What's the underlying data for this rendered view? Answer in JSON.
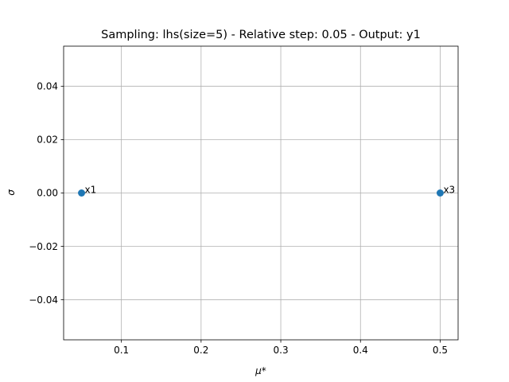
{
  "chart_data": {
    "type": "scatter",
    "title": "Sampling: lhs(size=5) - Relative step: 0.05 - Output: y1",
    "xlabel": "μ*",
    "ylabel": "σ",
    "xlim": [
      0.0275,
      0.5225
    ],
    "ylim": [
      -0.055,
      0.055
    ],
    "xticks": [
      0.1,
      0.2,
      0.3,
      0.4,
      0.5
    ],
    "xtick_labels": [
      "0.1",
      "0.2",
      "0.3",
      "0.4",
      "0.5"
    ],
    "yticks": [
      -0.04,
      -0.02,
      0.0,
      0.02,
      0.04
    ],
    "ytick_labels": [
      "−0.04",
      "−0.02",
      "0.00",
      "0.02",
      "0.04"
    ],
    "grid": true,
    "point_color": "#1f77b4",
    "points": [
      {
        "label": "x1",
        "x": 0.05,
        "y": 0.0
      },
      {
        "label": "x3",
        "x": 0.5,
        "y": 0.0
      }
    ]
  }
}
